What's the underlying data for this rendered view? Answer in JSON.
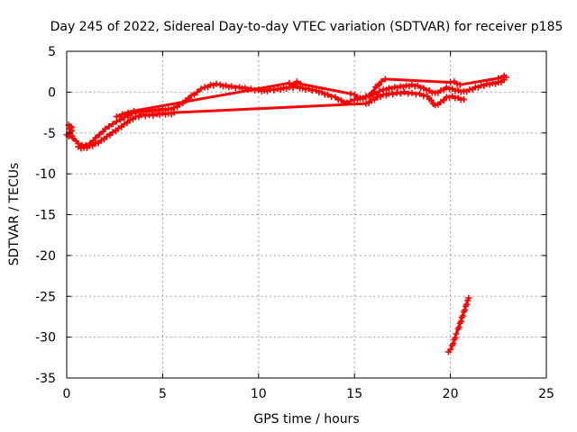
{
  "chart_data": {
    "type": "scatter",
    "title": "Day 245 of 2022, Sidereal Day-to-day VTEC variation (SDTVAR) for receiver p185",
    "xlabel": "GPS time / hours",
    "ylabel": "SDTVAR / TECUs",
    "xlim": [
      0,
      25
    ],
    "ylim": [
      -35,
      5
    ],
    "xticks": [
      0,
      5,
      10,
      15,
      20,
      25
    ],
    "yticks": [
      5,
      0,
      -5,
      -10,
      -15,
      -20,
      -25,
      -30,
      -35
    ],
    "grid": true,
    "legend": "none",
    "marker": "plus",
    "colors": {
      "series": "#ff0000",
      "grid": "#a0a0a0",
      "axis": "#000000"
    },
    "series": [
      {
        "name": "main",
        "points": [
          [
            0.0,
            -5.2
          ],
          [
            0.1,
            -5.4
          ],
          [
            0.2,
            -4.2
          ],
          [
            0.3,
            -5.6
          ],
          [
            0.5,
            -6.0
          ],
          [
            0.6,
            -6.3
          ],
          [
            0.8,
            -6.5
          ],
          [
            1.0,
            -6.5
          ],
          [
            1.2,
            -6.3
          ],
          [
            1.4,
            -5.9
          ],
          [
            1.5,
            -5.6
          ],
          [
            1.7,
            -5.2
          ],
          [
            1.9,
            -4.8
          ],
          [
            2.0,
            -4.5
          ],
          [
            2.2,
            -4.2
          ],
          [
            2.4,
            -3.9
          ],
          [
            2.6,
            -3.6
          ],
          [
            2.8,
            -3.4
          ],
          [
            3.0,
            -3.1
          ],
          [
            3.2,
            -2.9
          ],
          [
            3.4,
            -2.6
          ],
          [
            3.6,
            -2.5
          ],
          [
            3.8,
            -2.4
          ],
          [
            4.0,
            -2.3
          ],
          [
            4.3,
            -2.3
          ],
          [
            4.6,
            -2.2
          ],
          [
            5.0,
            -2.1
          ],
          [
            5.3,
            -2.1
          ],
          [
            5.6,
            -1.9
          ],
          [
            5.9,
            -1.5
          ],
          [
            6.2,
            -1.0
          ],
          [
            6.5,
            -0.4
          ],
          [
            6.8,
            0.0
          ],
          [
            7.0,
            0.4
          ],
          [
            7.2,
            0.6
          ],
          [
            7.5,
            0.9
          ],
          [
            7.8,
            1.0
          ],
          [
            8.0,
            0.9
          ],
          [
            8.3,
            0.8
          ],
          [
            8.6,
            0.7
          ],
          [
            9.0,
            0.6
          ],
          [
            9.3,
            0.5
          ],
          [
            9.6,
            0.4
          ],
          [
            10.0,
            0.3
          ],
          [
            10.3,
            0.2
          ],
          [
            10.6,
            0.3
          ],
          [
            11.0,
            0.4
          ],
          [
            11.3,
            0.5
          ],
          [
            11.6,
            0.6
          ],
          [
            12.0,
            0.7
          ],
          [
            12.3,
            0.5
          ],
          [
            12.6,
            0.4
          ],
          [
            13.0,
            0.2
          ],
          [
            13.3,
            0.0
          ],
          [
            13.6,
            -0.3
          ],
          [
            14.0,
            -0.6
          ],
          [
            14.3,
            -1.0
          ],
          [
            14.6,
            -1.3
          ],
          [
            14.8,
            -1.1
          ],
          [
            15.0,
            -0.9
          ],
          [
            15.3,
            -0.7
          ],
          [
            15.6,
            -0.5
          ],
          [
            16.0,
            -0.3
          ],
          [
            16.3,
            0.1
          ],
          [
            16.5,
            0.3
          ],
          [
            16.8,
            0.5
          ],
          [
            17.1,
            0.6
          ],
          [
            17.4,
            0.7
          ],
          [
            17.7,
            0.8
          ],
          [
            18.0,
            0.9
          ],
          [
            18.3,
            0.8
          ],
          [
            18.6,
            0.5
          ],
          [
            18.9,
            0.2
          ],
          [
            19.2,
            -0.1
          ],
          [
            19.5,
            0.2
          ],
          [
            19.8,
            0.6
          ],
          [
            20.1,
            0.4
          ],
          [
            20.4,
            0.2
          ],
          [
            20.7,
            0.1
          ],
          [
            21.0,
            0.3
          ],
          [
            21.3,
            0.6
          ],
          [
            21.6,
            0.8
          ],
          [
            21.9,
            1.0
          ],
          [
            22.2,
            1.1
          ],
          [
            22.5,
            1.2
          ],
          [
            22.8,
            1.5
          ]
        ]
      },
      {
        "name": "lower-band",
        "points": [
          [
            0.6,
            -6.7
          ],
          [
            0.9,
            -6.8
          ],
          [
            1.2,
            -6.6
          ],
          [
            1.5,
            -6.3
          ],
          [
            1.8,
            -5.9
          ],
          [
            2.1,
            -5.4
          ],
          [
            2.4,
            -4.9
          ],
          [
            2.7,
            -4.4
          ],
          [
            3.0,
            -3.9
          ],
          [
            3.3,
            -3.4
          ],
          [
            3.6,
            -3.0
          ],
          [
            3.9,
            -2.8
          ],
          [
            4.3,
            -2.8
          ],
          [
            4.7,
            -2.7
          ],
          [
            5.0,
            -2.6
          ],
          [
            5.3,
            -2.6
          ],
          [
            5.6,
            -2.5
          ],
          [
            15.6,
            -1.4
          ],
          [
            15.9,
            -1.0
          ],
          [
            16.2,
            -0.6
          ],
          [
            16.5,
            -0.3
          ],
          [
            16.8,
            -0.2
          ],
          [
            17.2,
            -0.1
          ],
          [
            17.6,
            0.0
          ],
          [
            18.0,
            -0.1
          ],
          [
            18.4,
            -0.2
          ],
          [
            18.8,
            -0.5
          ],
          [
            19.0,
            -1.0
          ],
          [
            19.2,
            -1.6
          ],
          [
            19.5,
            -1.2
          ],
          [
            19.8,
            -0.6
          ],
          [
            20.1,
            -0.5
          ],
          [
            20.4,
            -0.7
          ],
          [
            20.7,
            -0.9
          ]
        ]
      },
      {
        "name": "upper-band",
        "points": [
          [
            2.6,
            -3.0
          ],
          [
            2.9,
            -2.7
          ],
          [
            3.2,
            -2.5
          ],
          [
            3.5,
            -2.3
          ],
          [
            11.6,
            1.1
          ],
          [
            11.8,
            0.9
          ],
          [
            12.0,
            1.3
          ],
          [
            12.2,
            1.0
          ],
          [
            14.8,
            -0.2
          ],
          [
            15.0,
            -0.3
          ],
          [
            15.3,
            -0.8
          ],
          [
            15.6,
            -0.6
          ],
          [
            15.9,
            -0.1
          ],
          [
            16.2,
            0.8
          ],
          [
            16.4,
            1.3
          ],
          [
            16.6,
            1.6
          ],
          [
            20.0,
            1.2
          ],
          [
            20.2,
            1.3
          ],
          [
            20.5,
            0.9
          ],
          [
            22.5,
            1.7
          ],
          [
            22.8,
            2.0
          ],
          [
            22.9,
            1.8
          ]
        ]
      },
      {
        "name": "isolated",
        "points": [
          [
            0.1,
            -4.0
          ],
          [
            0.25,
            -4.3
          ]
        ]
      },
      {
        "name": "excursion",
        "points": [
          [
            19.9,
            -31.8
          ],
          [
            20.0,
            -31.5
          ],
          [
            20.1,
            -31.0
          ],
          [
            20.2,
            -30.3
          ],
          [
            20.3,
            -29.6
          ],
          [
            20.4,
            -29.0
          ],
          [
            20.5,
            -28.3
          ],
          [
            20.6,
            -27.6
          ],
          [
            20.7,
            -26.9
          ],
          [
            20.8,
            -26.2
          ],
          [
            20.9,
            -25.5
          ],
          [
            20.95,
            -25.2
          ]
        ]
      }
    ]
  }
}
